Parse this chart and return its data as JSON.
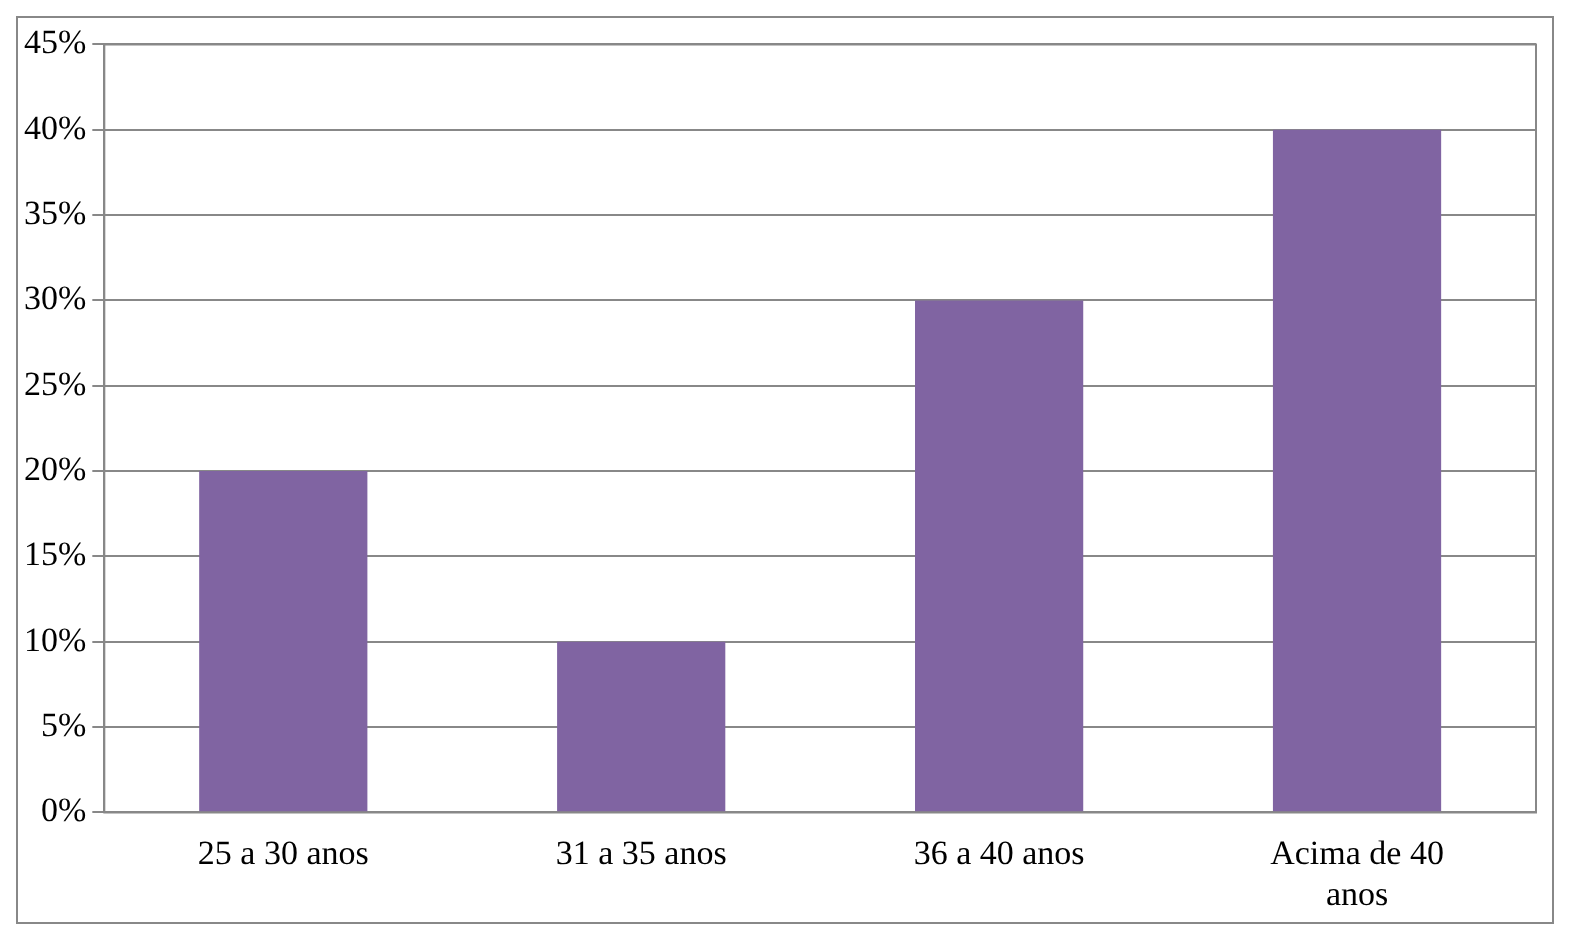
{
  "chart_data": {
    "type": "bar",
    "categories": [
      "25 a 30 anos",
      "31 a 35 anos",
      "36 a 40 anos",
      "Acima de 40 anos"
    ],
    "values": [
      20,
      10,
      30,
      40
    ],
    "color": "#8064a2",
    "ylim": [
      0,
      45
    ],
    "yticks": [
      {
        "value": 0,
        "label": "0%"
      },
      {
        "value": 5,
        "label": "5%"
      },
      {
        "value": 10,
        "label": "10%"
      },
      {
        "value": 15,
        "label": "15%"
      },
      {
        "value": 20,
        "label": "20%"
      },
      {
        "value": 25,
        "label": "25%"
      },
      {
        "value": 30,
        "label": "30%"
      },
      {
        "value": 35,
        "label": "35%"
      },
      {
        "value": 40,
        "label": "40%"
      },
      {
        "value": 45,
        "label": "45%"
      }
    ],
    "grid": "y",
    "legend": false
  }
}
